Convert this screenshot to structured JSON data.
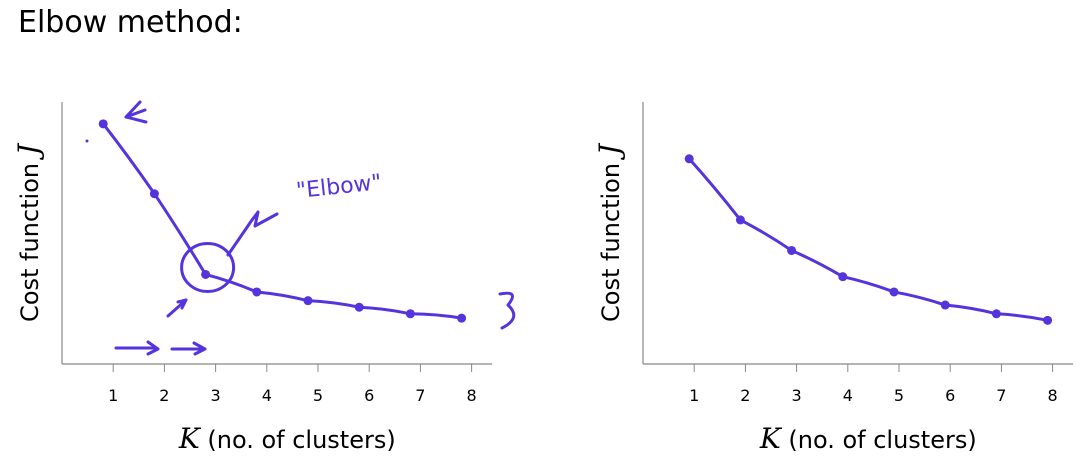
{
  "title": "Elbow method:",
  "ink_color": "#5533dd",
  "axis_color": "#888888",
  "chart_data": [
    {
      "type": "line",
      "x": [
        1,
        2,
        3,
        4,
        5,
        6,
        7,
        8
      ],
      "series": [
        {
          "values": [
            10.0,
            6.8,
            3.1,
            2.3,
            1.9,
            1.6,
            1.3,
            1.1
          ]
        }
      ],
      "xlabel_var": "K",
      "xlabel_text": "(no. of clusters)",
      "ylabel_text": "Cost function",
      "ylabel_var": "J",
      "xlim": [
        0,
        8.4
      ],
      "ylim": [
        -1,
        11
      ],
      "annotations": {
        "elbow_label": "\"Elbow\"",
        "elbow_marker_k": 3
      }
    },
    {
      "type": "line",
      "x": [
        1,
        2,
        3,
        4,
        5,
        6,
        7,
        8
      ],
      "series": [
        {
          "values": [
            8.4,
            5.6,
            4.2,
            3.0,
            2.3,
            1.7,
            1.3,
            1.0
          ]
        }
      ],
      "xlabel_var": "K",
      "xlabel_text": "(no. of clusters)",
      "ylabel_text": "Cost function",
      "ylabel_var": "J",
      "xlim": [
        0,
        8.4
      ],
      "ylim": [
        -1,
        11
      ]
    }
  ]
}
